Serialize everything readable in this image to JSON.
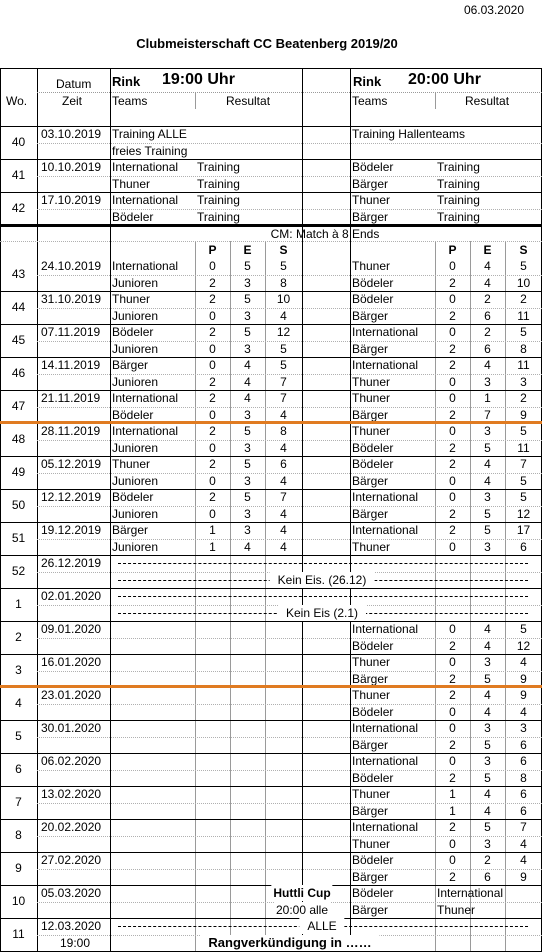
{
  "header": {
    "print_date": "06.03.2020",
    "title": "Clubmeisterschaft CC Beatenberg 2019/20"
  },
  "columns": {
    "datum": "Datum",
    "zeit": "Zeit",
    "wo": "Wo.",
    "rink": "Rink",
    "time1": "19:00 Uhr",
    "time2": "20:00 Uhr",
    "teams": "Teams",
    "resultat": "Resultat"
  },
  "training": {
    "weeks": [
      {
        "wo": 40,
        "date": "03.10.2019",
        "lines": [
          {
            "t1": "Training ALLE",
            "t2": "Training Hallenteams"
          },
          {
            "t1": "freies Training"
          }
        ]
      },
      {
        "wo": 41,
        "date": "10.10.2019",
        "lines": [
          {
            "t1": "International",
            "n1": "Training",
            "t2": "Bödeler",
            "n2": "Training"
          },
          {
            "t1": "Thuner",
            "n1": "Training",
            "t2": "Bärger",
            "n2": "Training"
          }
        ]
      },
      {
        "wo": 42,
        "date": "17.10.2019",
        "lines": [
          {
            "t1": "International",
            "n1": "Training",
            "t2": "Thuner",
            "n2": "Training"
          },
          {
            "t1": "Bödeler",
            "n1": "Training",
            "t2": "Bärger",
            "n2": "Training"
          }
        ]
      }
    ]
  },
  "cm": {
    "title": "CM:  Match à 8 Ends",
    "columns": [
      "P",
      "E",
      "S"
    ],
    "weeks": [
      {
        "wo": 43,
        "date": "24.10.2019",
        "lines": [
          {
            "t1": "International",
            "r1": [
              0,
              5,
              5
            ],
            "t2": "Thuner",
            "r2": [
              0,
              4,
              5
            ]
          },
          {
            "t1": "Junioren",
            "r1": [
              2,
              3,
              8
            ],
            "t2": "Bödeler",
            "r2": [
              2,
              4,
              10
            ]
          }
        ]
      },
      {
        "wo": 44,
        "date": "31.10.2019",
        "lines": [
          {
            "t1": "Thuner",
            "r1": [
              2,
              5,
              10
            ],
            "t2": "Bödeler",
            "r2": [
              0,
              2,
              2
            ]
          },
          {
            "t1": "Junioren",
            "r1": [
              0,
              3,
              4
            ],
            "t2": "Bärger",
            "r2": [
              2,
              6,
              11
            ]
          }
        ]
      },
      {
        "wo": 45,
        "date": "07.11.2019",
        "lines": [
          {
            "t1": "Bödeler",
            "r1": [
              2,
              5,
              12
            ],
            "t2": "International",
            "r2": [
              0,
              2,
              5
            ]
          },
          {
            "t1": "Junioren",
            "r1": [
              0,
              3,
              5
            ],
            "t2": "Bärger",
            "r2": [
              2,
              6,
              8
            ]
          }
        ]
      },
      {
        "wo": 46,
        "date": "14.11.2019",
        "lines": [
          {
            "t1": "Bärger",
            "r1": [
              0,
              4,
              5
            ],
            "t2": "International",
            "r2": [
              2,
              4,
              11
            ]
          },
          {
            "t1": "Junioren",
            "r1": [
              2,
              4,
              7
            ],
            "t2": "Thuner",
            "r2": [
              0,
              3,
              3
            ]
          }
        ]
      },
      {
        "wo": 47,
        "date": "21.11.2019",
        "lines": [
          {
            "t1": "International",
            "r1": [
              2,
              4,
              7
            ],
            "t2": "Thuner",
            "r2": [
              0,
              1,
              2
            ]
          },
          {
            "t1": "Bödeler",
            "r1": [
              0,
              3,
              4
            ],
            "t2": "Bärger",
            "r2": [
              2,
              7,
              9
            ]
          }
        ]
      },
      {
        "wo": 48,
        "date": "28.11.2019",
        "rule": "#e07b21",
        "lines": [
          {
            "t1": "International",
            "r1": [
              2,
              5,
              8
            ],
            "t2": "Thuner",
            "r2": [
              0,
              3,
              5
            ]
          },
          {
            "t1": "Junioren",
            "r1": [
              0,
              3,
              4
            ],
            "t2": "Bödeler",
            "r2": [
              2,
              5,
              11
            ]
          }
        ]
      },
      {
        "wo": 49,
        "date": "05.12.2019",
        "lines": [
          {
            "t1": "Thuner",
            "r1": [
              2,
              5,
              6
            ],
            "t2": "Bödeler",
            "r2": [
              2,
              4,
              7
            ]
          },
          {
            "t1": "Junioren",
            "r1": [
              0,
              3,
              4
            ],
            "t2": "Bärger",
            "r2": [
              0,
              4,
              5
            ]
          }
        ]
      },
      {
        "wo": 50,
        "date": "12.12.2019",
        "lines": [
          {
            "t1": "Bödeler",
            "r1": [
              2,
              5,
              7
            ],
            "t2": "International",
            "r2": [
              0,
              3,
              5
            ]
          },
          {
            "t1": "Junioren",
            "r1": [
              0,
              3,
              4
            ],
            "t2": "Bärger",
            "r2": [
              2,
              5,
              12
            ]
          }
        ]
      },
      {
        "wo": 51,
        "date": "19.12.2019",
        "lines": [
          {
            "t1": "Bärger",
            "r1": [
              1,
              3,
              4
            ],
            "t2": "International",
            "r2": [
              2,
              5,
              17
            ]
          },
          {
            "t1": "Junioren",
            "r1": [
              1,
              4,
              4
            ],
            "t2": "Thuner",
            "r2": [
              0,
              3,
              6
            ]
          }
        ]
      },
      {
        "wo": 52,
        "date": "26.12.2019",
        "lines": [
          {
            "dashed": true
          },
          {
            "dashed": true,
            "banner": "Kein Eis. (26.12)"
          }
        ]
      },
      {
        "wo": 1,
        "date": "02.01.2020",
        "lines": [
          {
            "dashed": true
          },
          {
            "dashed": true,
            "banner": "Kein Eis (2.1)"
          }
        ]
      },
      {
        "wo": 2,
        "date": "09.01.2020",
        "lines": [
          {
            "t2": "International",
            "r2": [
              0,
              4,
              5
            ]
          },
          {
            "t2": "Bödeler",
            "r2": [
              2,
              4,
              12
            ]
          }
        ]
      },
      {
        "wo": 3,
        "date": "16.01.2020",
        "lines": [
          {
            "t2": "Thuner",
            "r2": [
              0,
              3,
              4
            ]
          },
          {
            "t2": "Bärger",
            "r2": [
              2,
              5,
              9
            ]
          }
        ]
      },
      {
        "wo": 4,
        "date": "23.01.2020",
        "rule": "#e07b21",
        "lines": [
          {
            "t2": "Thuner",
            "r2": [
              2,
              4,
              9
            ]
          },
          {
            "t2": "Bödeler",
            "r2": [
              0,
              4,
              4
            ]
          }
        ]
      },
      {
        "wo": 5,
        "date": "30.01.2020",
        "lines": [
          {
            "t2": "International",
            "r2": [
              0,
              3,
              3
            ]
          },
          {
            "t2": "Bärger",
            "r2": [
              2,
              5,
              6
            ]
          }
        ]
      },
      {
        "wo": 6,
        "date": "06.02.2020",
        "lines": [
          {
            "t2": "International",
            "r2": [
              0,
              3,
              6
            ]
          },
          {
            "t2": "Bödeler",
            "r2": [
              2,
              5,
              8
            ]
          }
        ]
      },
      {
        "wo": 7,
        "date": "13.02.2020",
        "lines": [
          {
            "t2": "Thuner",
            "r2": [
              1,
              4,
              6
            ]
          },
          {
            "t2": "Bärger",
            "r2": [
              1,
              4,
              6
            ]
          }
        ]
      },
      {
        "wo": 8,
        "date": "20.02.2020",
        "lines": [
          {
            "t2": "International",
            "r2": [
              2,
              5,
              7
            ]
          },
          {
            "t2": "Thuner",
            "r2": [
              0,
              3,
              4
            ]
          }
        ]
      },
      {
        "wo": 9,
        "date": "27.02.2020",
        "lines": [
          {
            "t2": "Bödeler",
            "r2": [
              0,
              2,
              4
            ]
          },
          {
            "t2": "Bärger",
            "r2": [
              2,
              6,
              9
            ]
          }
        ]
      },
      {
        "wo": 10,
        "date": "05.03.2020",
        "lines": [
          {
            "mid": "Huttli Cup",
            "bold": true,
            "t2": "Bödeler",
            "n2": "International"
          },
          {
            "mid": "20:00 alle",
            "t2": "Bärger",
            "n2": "Thuner"
          }
        ]
      },
      {
        "wo": 11,
        "date": "12.03.2020",
        "time": "19:00",
        "lines": [
          {
            "dashed": true,
            "banner": "ALLE"
          },
          {
            "banner": "Rangverkündigung in ……",
            "bold": true
          }
        ]
      }
    ]
  }
}
